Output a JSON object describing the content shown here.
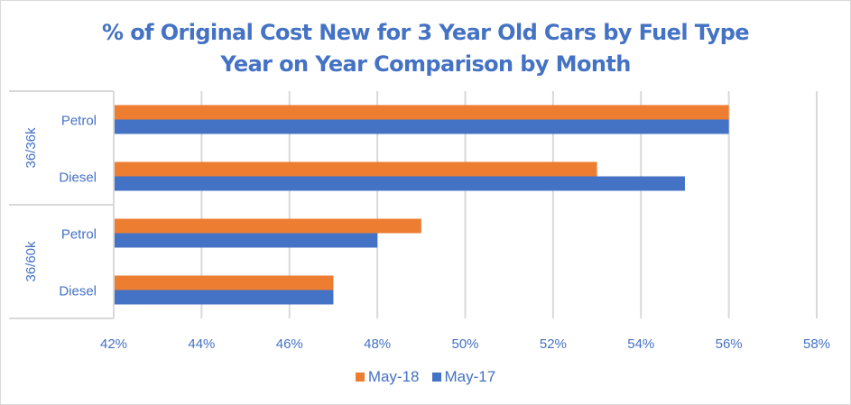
{
  "chart_data": {
    "type": "bar",
    "orientation": "horizontal",
    "title": "% of Original Cost New for 3 Year Old Cars by Fuel Type",
    "subtitle": "Year on Year Comparison by Month",
    "xlabel": "",
    "ylabel": "",
    "xlim": [
      42,
      58
    ],
    "x_ticks": [
      42,
      44,
      46,
      48,
      50,
      52,
      54,
      56,
      58
    ],
    "x_tick_suffix": "%",
    "grid": true,
    "legend_position": "bottom",
    "groups": [
      {
        "name": "36/36k",
        "categories": [
          "Petrol",
          "Diesel"
        ]
      },
      {
        "name": "36/60k",
        "categories": [
          "Petrol",
          "Diesel"
        ]
      }
    ],
    "categories": [
      "36/36k Petrol",
      "36/36k Diesel",
      "36/60k Petrol",
      "36/60k Diesel"
    ],
    "series": [
      {
        "name": "May-18",
        "color": "#ed7d31",
        "values": [
          56,
          53,
          49,
          47
        ]
      },
      {
        "name": "May-17",
        "color": "#4472c4",
        "values": [
          56,
          55,
          48,
          47
        ]
      }
    ]
  },
  "colors": {
    "text": "#4472c4",
    "grid": "#d9d9d9"
  }
}
